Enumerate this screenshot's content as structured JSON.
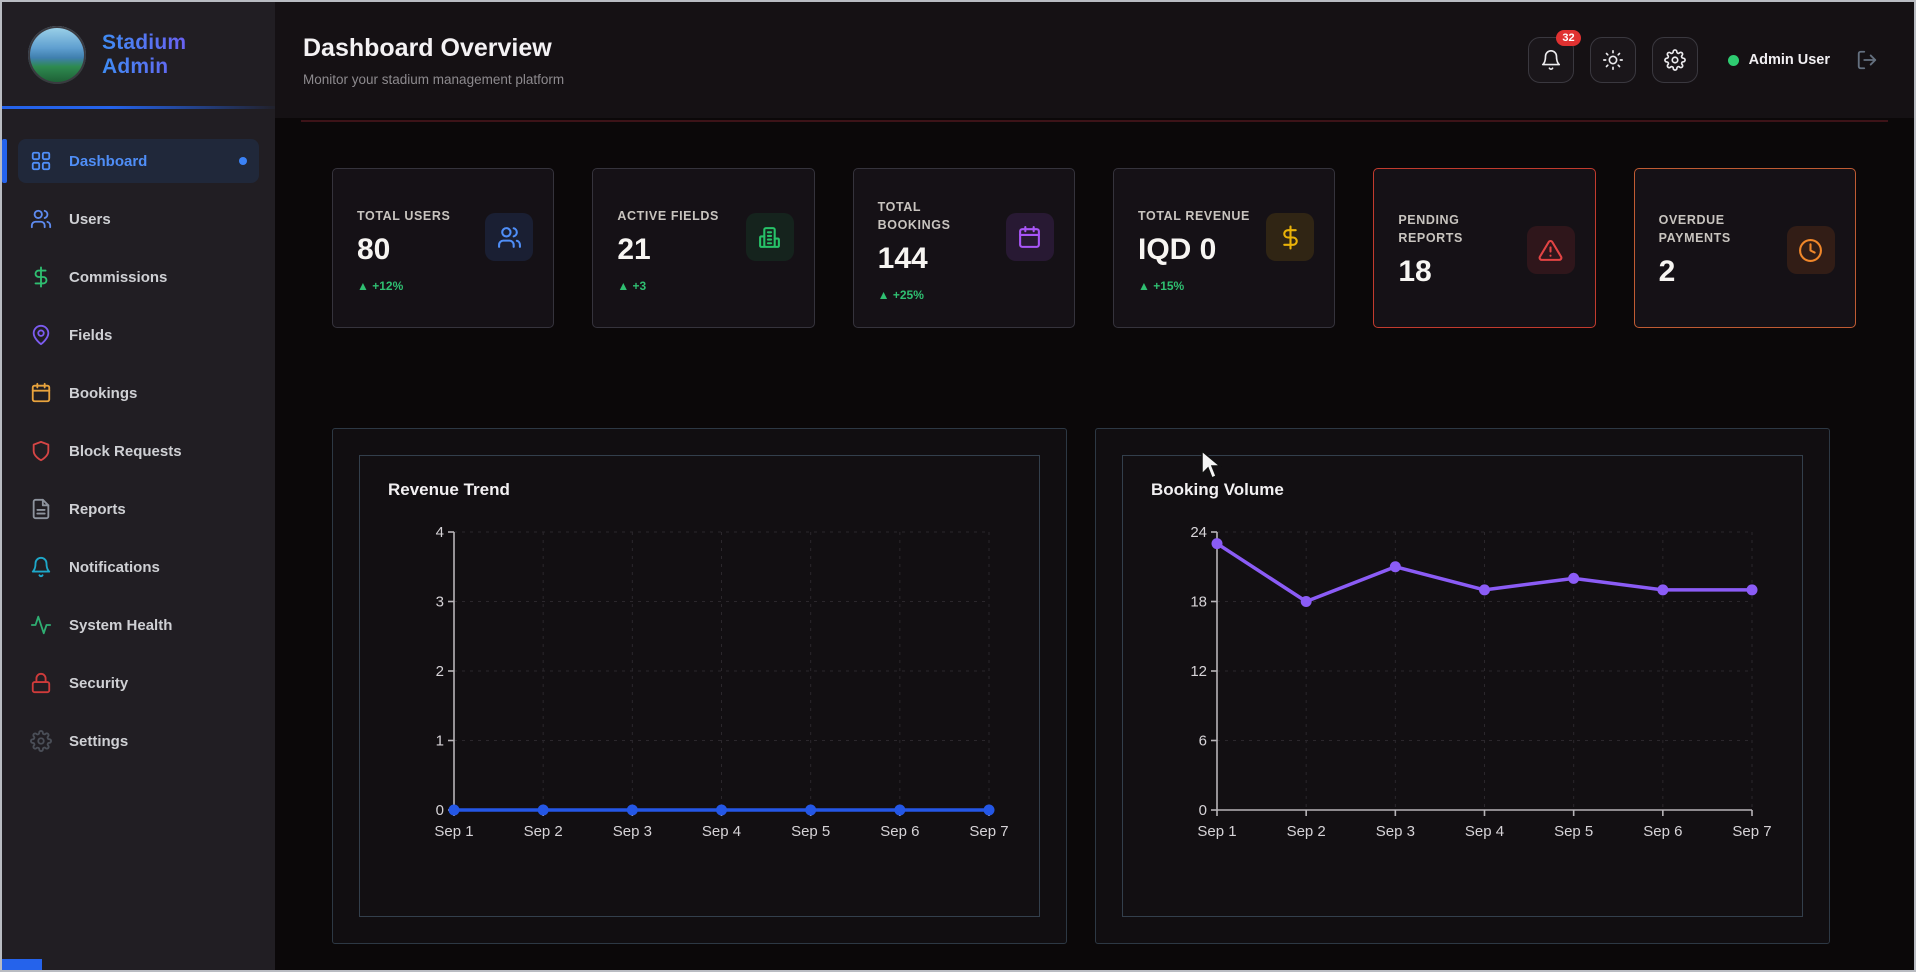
{
  "sidebar": {
    "brand": "Stadium Admin",
    "items": [
      {
        "label": "Dashboard",
        "icon": "dashboard-icon",
        "active": true
      },
      {
        "label": "Users",
        "icon": "users-icon"
      },
      {
        "label": "Commissions",
        "icon": "dollar-icon"
      },
      {
        "label": "Fields",
        "icon": "map-pin-icon"
      },
      {
        "label": "Bookings",
        "icon": "calendar-icon"
      },
      {
        "label": "Block Requests",
        "icon": "shield-icon"
      },
      {
        "label": "Reports",
        "icon": "file-text-icon"
      },
      {
        "label": "Notifications",
        "icon": "bell-icon"
      },
      {
        "label": "System Health",
        "icon": "activity-icon"
      },
      {
        "label": "Security",
        "icon": "lock-icon"
      },
      {
        "label": "Settings",
        "icon": "gear-icon"
      }
    ]
  },
  "header": {
    "title": "Dashboard Overview",
    "subtitle": "Monitor your stadium management platform",
    "notification_count": "32",
    "user_name": "Admin User",
    "icons": [
      "bell-icon",
      "sun-icon",
      "gear-icon",
      "logout-icon"
    ]
  },
  "stats": [
    {
      "label": "TOTAL USERS",
      "value": "80",
      "trend": "▲ +12%",
      "icon": "users-icon",
      "color": "#4f8ef7"
    },
    {
      "label": "ACTIVE FIELDS",
      "value": "21",
      "trend": "▲ +3",
      "icon": "building-icon",
      "color": "#27c268"
    },
    {
      "label": "TOTAL BOOKINGS",
      "value": "144",
      "trend": "▲ +25%",
      "icon": "calendar-icon",
      "color": "#a855f7"
    },
    {
      "label": "TOTAL REVENUE",
      "value": "IQD 0",
      "trend": "▲ +15%",
      "icon": "dollar-icon",
      "color": "#eab308"
    },
    {
      "label": "PENDING REPORTS",
      "value": "18",
      "trend": "",
      "icon": "alert-triangle-icon",
      "color": "#e24444"
    },
    {
      "label": "OVERDUE PAYMENTS",
      "value": "2",
      "trend": "",
      "icon": "clock-icon",
      "color": "#f0872a"
    }
  ],
  "chart_data": [
    {
      "type": "line",
      "title": "Revenue Trend",
      "x": [
        "Sep 1",
        "Sep 2",
        "Sep 3",
        "Sep 4",
        "Sep 5",
        "Sep 6",
        "Sep 7"
      ],
      "series": [
        {
          "name": "Revenue",
          "values": [
            0,
            0,
            0,
            0,
            0,
            0,
            0
          ]
        }
      ],
      "ylim": [
        0,
        4
      ],
      "yticks": [
        0,
        1,
        2,
        3,
        4
      ],
      "color": "#2457e6",
      "grid": true,
      "legend": false
    },
    {
      "type": "line",
      "title": "Booking Volume",
      "x": [
        "Sep 1",
        "Sep 2",
        "Sep 3",
        "Sep 4",
        "Sep 5",
        "Sep 6",
        "Sep 7"
      ],
      "series": [
        {
          "name": "Bookings",
          "values": [
            23,
            18,
            21,
            19,
            20,
            19,
            19
          ]
        }
      ],
      "ylim": [
        0,
        24
      ],
      "yticks": [
        0,
        6,
        12,
        18,
        24
      ],
      "color": "#8b5cf6",
      "grid": true,
      "legend": false
    }
  ],
  "colors": {
    "accent_blue": "#2563eb",
    "accent_purple": "#8b5cf6",
    "trend_green": "#2fbf71",
    "alert_red": "#c23b2e",
    "alert_orange": "#bf5b33",
    "badge_red": "#e03131"
  }
}
